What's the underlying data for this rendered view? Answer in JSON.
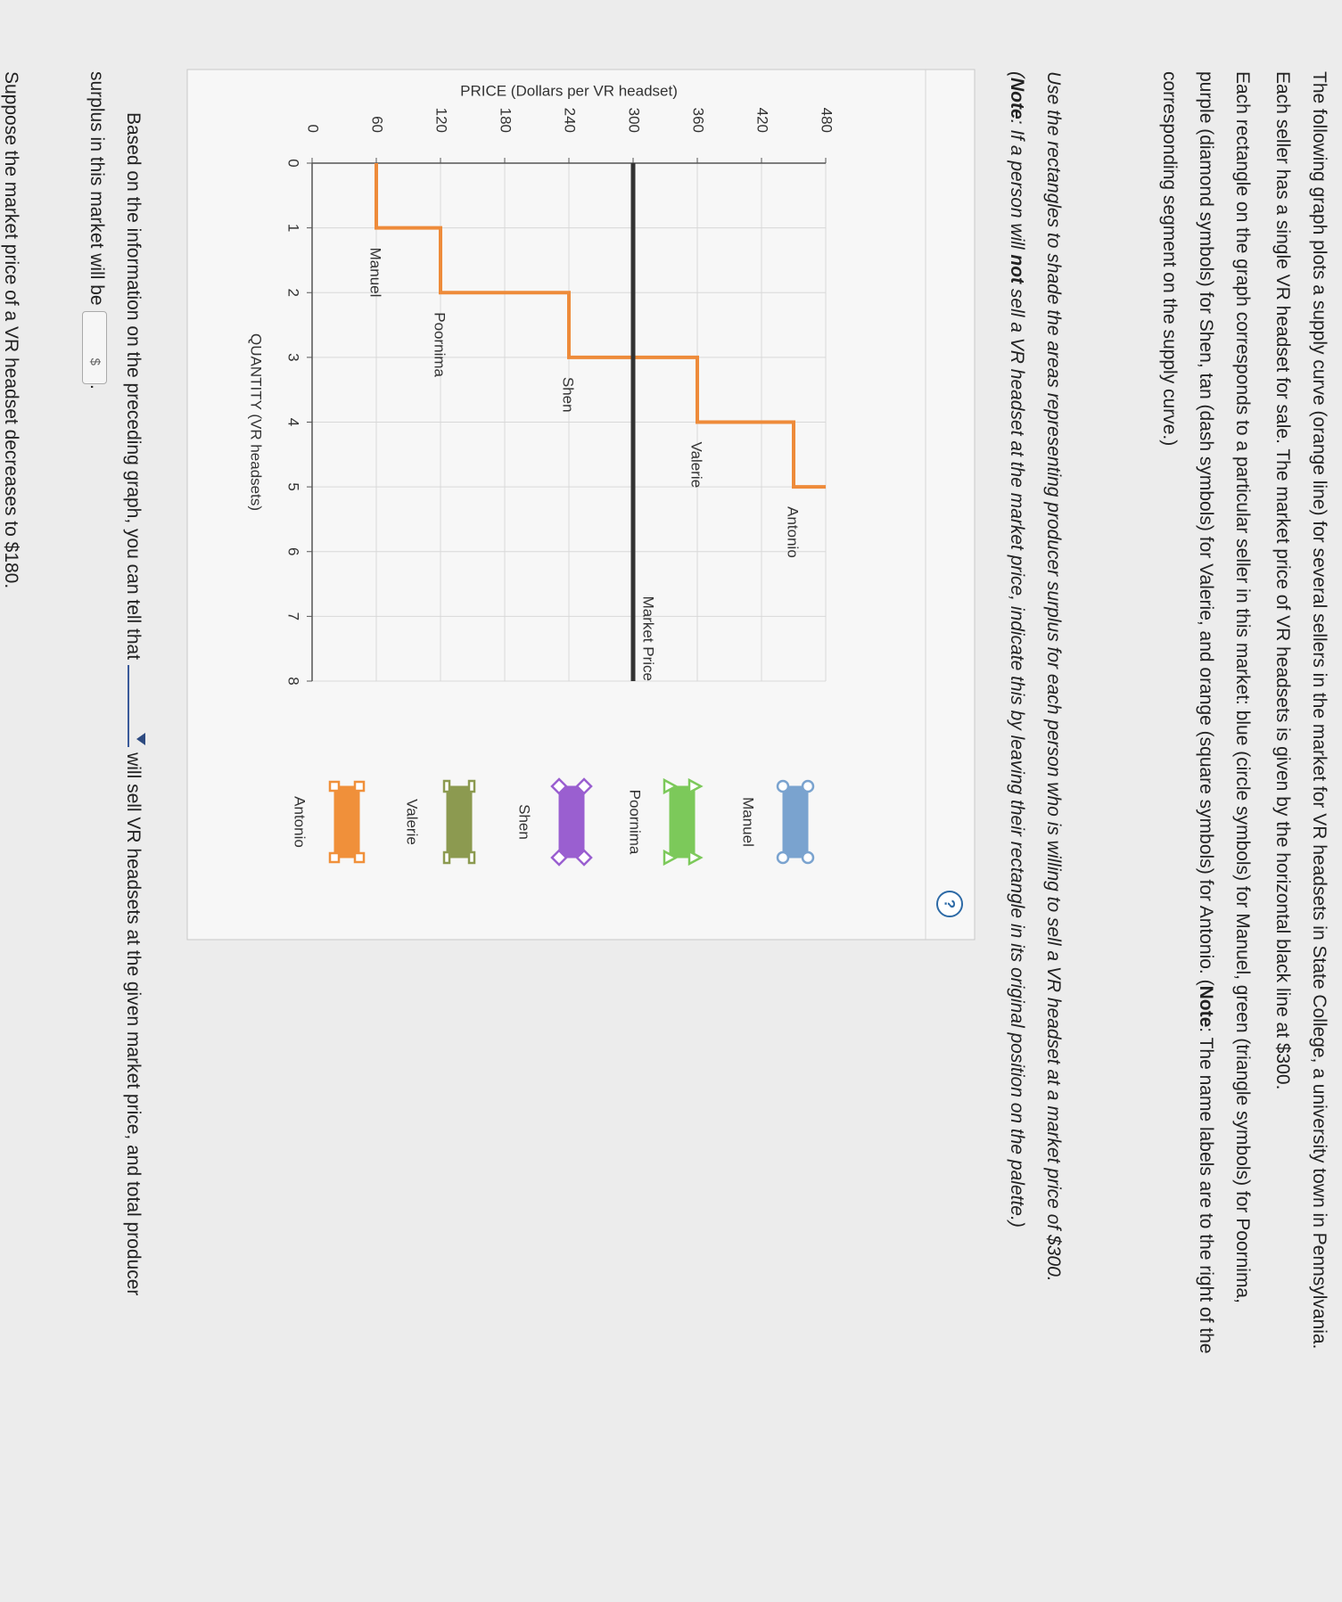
{
  "paragraphs": [
    [
      "The following graph plots a supply curve (orange line) for several sellers in the market for VR headsets in State College, a university town in Pennsylvania. Each seller has a single VR headset for sale. The market price of VR headsets is given by the horizontal black line at $300."
    ],
    [
      "Each rectangle on the graph corresponds to a particular seller in this market: blue (circle symbols) for Manuel, green (triangle symbols) for Poornima, purple (diamond symbols) for Shen, tan (dash symbols) for Valerie, and orange (square symbols) for Antonio. (",
      "Note",
      ": The name labels are to the right of the corresponding segment on the supply curve.)"
    ],
    [
      "Use the rectangles to shade the areas representing producer surplus for each person who is willing to sell a VR headset at a market price of $300."
    ],
    [
      "(",
      "Note",
      ": If a person will ",
      "not",
      " sell a VR headset at the market price, indicate this by leaving their rectangle in its original position on the palette.)"
    ]
  ],
  "chart_data": {
    "type": "line",
    "x_label": "QUANTITY (VR headsets)",
    "y_label": "PRICE (Dollars per VR headset)",
    "series": [
      {
        "color": "#ee8b3a",
        "x": [
          0,
          1,
          1,
          2,
          2,
          3,
          3,
          4,
          4,
          5,
          5
        ],
        "values": [
          60,
          60,
          120,
          120,
          240,
          240,
          360,
          360,
          450,
          450,
          480
        ]
      },
      {
        "name": "Market Price",
        "color": "#333333",
        "x": [
          0,
          8
        ],
        "values": [
          300,
          300
        ]
      }
    ],
    "segment_labels": [
      "Manuel",
      "Poornima",
      "Shen",
      "Valerie",
      "Antonio"
    ],
    "xlim": [
      0,
      8
    ],
    "xticks": [
      0,
      1,
      2,
      3,
      4,
      5,
      6,
      7,
      8
    ],
    "ylim": [
      0,
      480
    ],
    "yticks": [
      0,
      60,
      120,
      180,
      240,
      300,
      360,
      420,
      480
    ],
    "grid": true
  },
  "palette": [
    {
      "name": "Manuel",
      "color": "#7aa3cf",
      "symbol": "circle"
    },
    {
      "name": "Poornima",
      "color": "#7cc95a",
      "symbol": "triangle"
    },
    {
      "name": "Shen",
      "color": "#9a5fd0",
      "symbol": "diamond"
    },
    {
      "name": "Valerie",
      "color": "#8c9a50",
      "symbol": "dash"
    },
    {
      "name": "Antonio",
      "color": "#f0903a",
      "symbol": "square"
    }
  ],
  "help": "?",
  "question": {
    "before": "Based on the information on the preceding graph, you can tell that",
    "middle": "will sell VR headsets at the given market price, and total producer surplus in this market will be",
    "currency": "$",
    "after": "."
  },
  "next": "Suppose the market price of a VR headset decreases to $180."
}
